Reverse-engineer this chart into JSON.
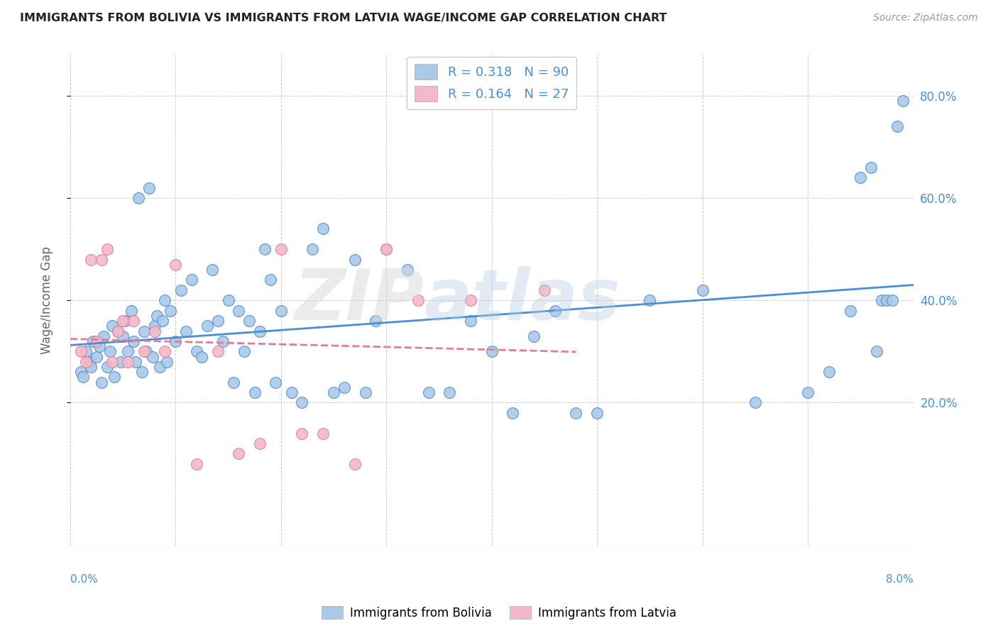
{
  "title": "IMMIGRANTS FROM BOLIVIA VS IMMIGRANTS FROM LATVIA WAGE/INCOME GAP CORRELATION CHART",
  "source": "Source: ZipAtlas.com",
  "ylabel": "Wage/Income Gap",
  "ytick_labels_left": [
    "20.0%",
    "40.0%",
    "60.0%",
    "80.0%"
  ],
  "ytick_values": [
    20.0,
    40.0,
    60.0,
    80.0
  ],
  "xlim": [
    0.0,
    8.0
  ],
  "ylim": [
    -8.0,
    88.0
  ],
  "watermark_1": "ZIP",
  "watermark_2": "atlas",
  "bolivia_R": 0.318,
  "bolivia_N": 90,
  "latvia_R": 0.164,
  "latvia_N": 27,
  "bolivia_color": "#aac9e8",
  "latvia_color": "#f5b8c8",
  "bolivia_line_color": "#4a8fd4",
  "latvia_line_color": "#e8799a",
  "bolivia_scatter_x": [
    0.1,
    0.12,
    0.15,
    0.18,
    0.2,
    0.22,
    0.25,
    0.28,
    0.3,
    0.32,
    0.35,
    0.38,
    0.4,
    0.42,
    0.45,
    0.48,
    0.5,
    0.52,
    0.55,
    0.58,
    0.6,
    0.62,
    0.65,
    0.68,
    0.7,
    0.72,
    0.75,
    0.78,
    0.8,
    0.82,
    0.85,
    0.88,
    0.9,
    0.92,
    0.95,
    1.0,
    1.05,
    1.1,
    1.15,
    1.2,
    1.25,
    1.3,
    1.35,
    1.4,
    1.45,
    1.5,
    1.55,
    1.6,
    1.65,
    1.7,
    1.75,
    1.8,
    1.85,
    1.9,
    1.95,
    2.0,
    2.1,
    2.2,
    2.3,
    2.4,
    2.5,
    2.6,
    2.7,
    2.8,
    2.9,
    3.0,
    3.2,
    3.4,
    3.6,
    3.8,
    4.0,
    4.2,
    4.4,
    4.6,
    4.8,
    5.0,
    5.5,
    6.0,
    6.5,
    7.0,
    7.2,
    7.4,
    7.5,
    7.6,
    7.65,
    7.7,
    7.75,
    7.8,
    7.85,
    7.9
  ],
  "bolivia_scatter_y": [
    26.0,
    25.0,
    30.0,
    28.0,
    27.0,
    32.0,
    29.0,
    31.0,
    24.0,
    33.0,
    27.0,
    30.0,
    35.0,
    25.0,
    34.0,
    28.0,
    33.0,
    36.0,
    30.0,
    38.0,
    32.0,
    28.0,
    60.0,
    26.0,
    34.0,
    30.0,
    62.0,
    29.0,
    35.0,
    37.0,
    27.0,
    36.0,
    40.0,
    28.0,
    38.0,
    32.0,
    42.0,
    34.0,
    44.0,
    30.0,
    29.0,
    35.0,
    46.0,
    36.0,
    32.0,
    40.0,
    24.0,
    38.0,
    30.0,
    36.0,
    22.0,
    34.0,
    50.0,
    44.0,
    24.0,
    38.0,
    22.0,
    20.0,
    50.0,
    54.0,
    22.0,
    23.0,
    48.0,
    22.0,
    36.0,
    50.0,
    46.0,
    22.0,
    22.0,
    36.0,
    30.0,
    18.0,
    33.0,
    38.0,
    18.0,
    18.0,
    40.0,
    42.0,
    20.0,
    22.0,
    26.0,
    38.0,
    64.0,
    66.0,
    30.0,
    40.0,
    40.0,
    40.0,
    74.0,
    79.0
  ],
  "latvia_scatter_x": [
    0.1,
    0.15,
    0.2,
    0.25,
    0.3,
    0.35,
    0.4,
    0.45,
    0.5,
    0.55,
    0.6,
    0.7,
    0.8,
    0.9,
    1.0,
    1.2,
    1.4,
    1.6,
    1.8,
    2.0,
    2.2,
    2.4,
    2.7,
    3.0,
    3.3,
    3.8,
    4.5
  ],
  "latvia_scatter_y": [
    30.0,
    28.0,
    48.0,
    32.0,
    48.0,
    50.0,
    28.0,
    34.0,
    36.0,
    28.0,
    36.0,
    30.0,
    34.0,
    30.0,
    47.0,
    8.0,
    30.0,
    10.0,
    12.0,
    50.0,
    14.0,
    14.0,
    8.0,
    50.0,
    40.0,
    40.0,
    42.0
  ]
}
